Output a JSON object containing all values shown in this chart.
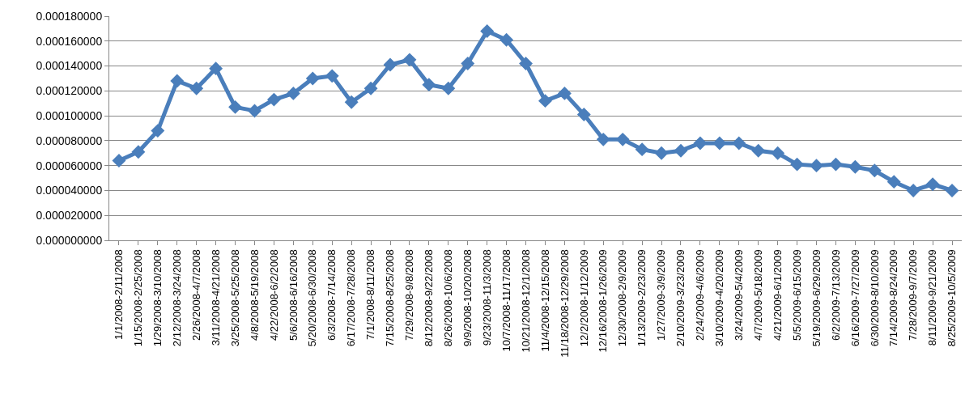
{
  "chart_data": {
    "type": "line",
    "categories": [
      "1/1/2008-2/11/2008",
      "1/15/2008-2/25/2008",
      "1/29/2008-3/10/2008",
      "2/12/2008-3/24/2008",
      "2/26/2008-4/7/2008",
      "3/11/2008-4/21/2008",
      "3/25/2008-5/25/2008",
      "4/8/2008-5/19/2008",
      "4/22/2008-6/2/2008",
      "5/6/2008-6/16/2008",
      "5/20/2008-6/30/2008",
      "6/3/2008-7/14/2008",
      "6/17/2008-7/28/2008",
      "7/1/2008-8/11/2008",
      "7/15/2008-8/25/2008",
      "7/29/2008-9/8/2008",
      "8/12/2008-9/22/2008",
      "8/26/2008-10/6/2008",
      "9/9/2008-10/20/2008",
      "9/23/2008-11/3/2008",
      "10/7/2008-11/17/2008",
      "10/21/2008-12/1/2008",
      "11/4/2008-12/15/2008",
      "11/18/2008-12/29/2008",
      "12/2/2008-1/12/2009",
      "12/16/2008-1/26/2009",
      "12/30/2008-2/9/2009",
      "1/13/2009-2/23/2009",
      "1/27/2009-3/9/2009",
      "2/10/2009-3/23/2009",
      "2/24/2009-4/6/2009",
      "3/10/2009-4/20/2009",
      "3/24/2009-5/4/2009",
      "4/7/2009-5/18/2009",
      "4/21/2009-6/1/2009",
      "5/5/2009-6/15/2009",
      "5/19/2009-6/29/2009",
      "6/2/2009-7/13/2009",
      "6/16/2009-7/27/2009",
      "6/30/2009-8/10/2009",
      "7/14/2009-8/24/2009",
      "7/28/2009-9/7/2009",
      "8/11/2009-9/21/2009",
      "8/25/2009-10/5/2009"
    ],
    "series": [
      {
        "color": "#4a7ebb",
        "values": [
          6.4e-05,
          7.1e-05,
          8.8e-05,
          0.000128,
          0.000122,
          0.000138,
          0.000107,
          0.000104,
          0.000113,
          0.000118,
          0.00013,
          0.000132,
          0.000111,
          0.000122,
          0.000141,
          0.000145,
          0.000125,
          0.000122,
          0.000142,
          0.000168,
          0.000161,
          0.000142,
          0.000112,
          0.000118,
          0.000101,
          8.1e-05,
          8.1e-05,
          7.3e-05,
          7e-05,
          7.2e-05,
          7.8e-05,
          7.8e-05,
          7.8e-05,
          7.2e-05,
          7e-05,
          6.1e-05,
          6e-05,
          6.1e-05,
          5.9e-05,
          5.6e-05,
          4.7e-05,
          4e-05,
          4.5e-05,
          4e-05
        ]
      }
    ],
    "ylim": [
      0,
      0.00018
    ],
    "yticks": [
      {
        "value": 0,
        "label": "0.000000000"
      },
      {
        "value": 2e-05,
        "label": "0.000020000"
      },
      {
        "value": 4e-05,
        "label": "0.000040000"
      },
      {
        "value": 6e-05,
        "label": "0.000060000"
      },
      {
        "value": 8e-05,
        "label": "0.000080000"
      },
      {
        "value": 0.0001,
        "label": "0.000100000"
      },
      {
        "value": 0.00012,
        "label": "0.000120000"
      },
      {
        "value": 0.00014,
        "label": "0.000140000"
      },
      {
        "value": 0.00016,
        "label": "0.000160000"
      },
      {
        "value": 0.00018,
        "label": "0.000180000"
      }
    ],
    "grid": "y",
    "marker": "diamond",
    "line_style": "solid"
  }
}
